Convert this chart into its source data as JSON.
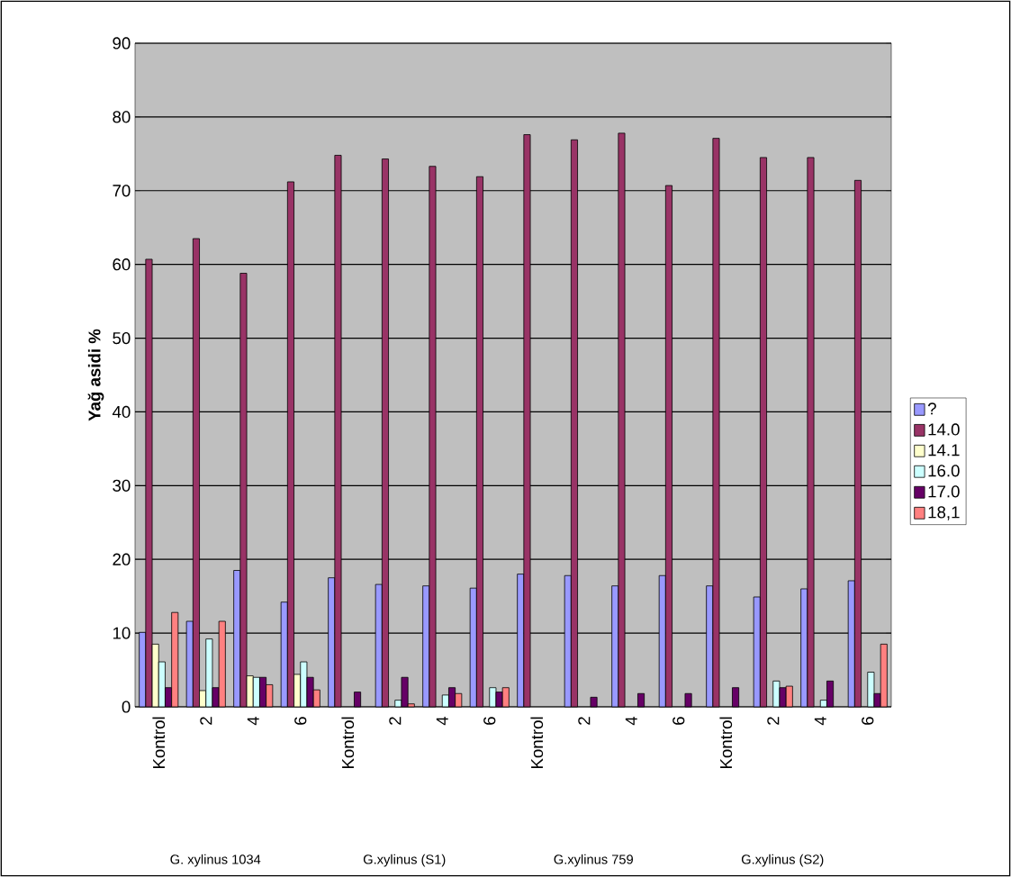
{
  "chart_data": {
    "type": "bar",
    "ylabel": "Yağ asidi %",
    "categories": [
      "Kontrol",
      "2",
      "4",
      "6",
      "Kontrol",
      "2",
      "4",
      "6",
      "Kontrol",
      "2",
      "4",
      "6",
      "Kontrol",
      "2",
      "4",
      "6"
    ],
    "series": [
      {
        "name": "?",
        "color": "#9999ff",
        "values": [
          10.1,
          11.6,
          18.5,
          14.2,
          17.5,
          16.6,
          16.4,
          16.1,
          18.0,
          17.8,
          16.4,
          17.8,
          16.4,
          14.9,
          16.0,
          17.1
        ]
      },
      {
        "name": "14.0",
        "color": "#993366",
        "values": [
          60.7,
          63.5,
          58.8,
          71.2,
          74.8,
          74.3,
          73.3,
          71.9,
          77.6,
          76.9,
          77.8,
          70.7,
          77.1,
          74.5,
          74.5,
          71.4
        ]
      },
      {
        "name": "14.1",
        "color": "#ffffcc",
        "values": [
          8.5,
          2.2,
          4.2,
          4.4,
          null,
          null,
          null,
          null,
          null,
          null,
          null,
          null,
          null,
          null,
          null,
          null
        ]
      },
      {
        "name": "16.0",
        "color": "#ccffff",
        "values": [
          6.1,
          9.2,
          4.0,
          6.1,
          null,
          0.9,
          1.6,
          2.6,
          null,
          null,
          null,
          null,
          null,
          3.5,
          0.9,
          4.7
        ]
      },
      {
        "name": "17.0",
        "color": "#660066",
        "values": [
          2.6,
          2.6,
          4.0,
          4.0,
          2.0,
          4.0,
          2.6,
          2.0,
          null,
          1.3,
          1.8,
          1.8,
          2.6,
          2.6,
          3.5,
          1.8
        ]
      },
      {
        "name": "18,1",
        "color": "#ff8080",
        "values": [
          12.8,
          11.6,
          3.0,
          2.3,
          null,
          0.4,
          1.8,
          2.6,
          null,
          null,
          null,
          null,
          null,
          2.8,
          null,
          8.5
        ]
      }
    ],
    "ylim": [
      0,
      90
    ],
    "yticks": [
      0,
      10,
      20,
      30,
      40,
      50,
      60,
      70,
      80,
      90
    ],
    "grid": "y",
    "legend": "right",
    "annotations": [
      "G. xylinus 1034",
      "G.xylinus (S1)",
      "G.xylinus 759",
      "G.xylinus (S2)"
    ]
  }
}
